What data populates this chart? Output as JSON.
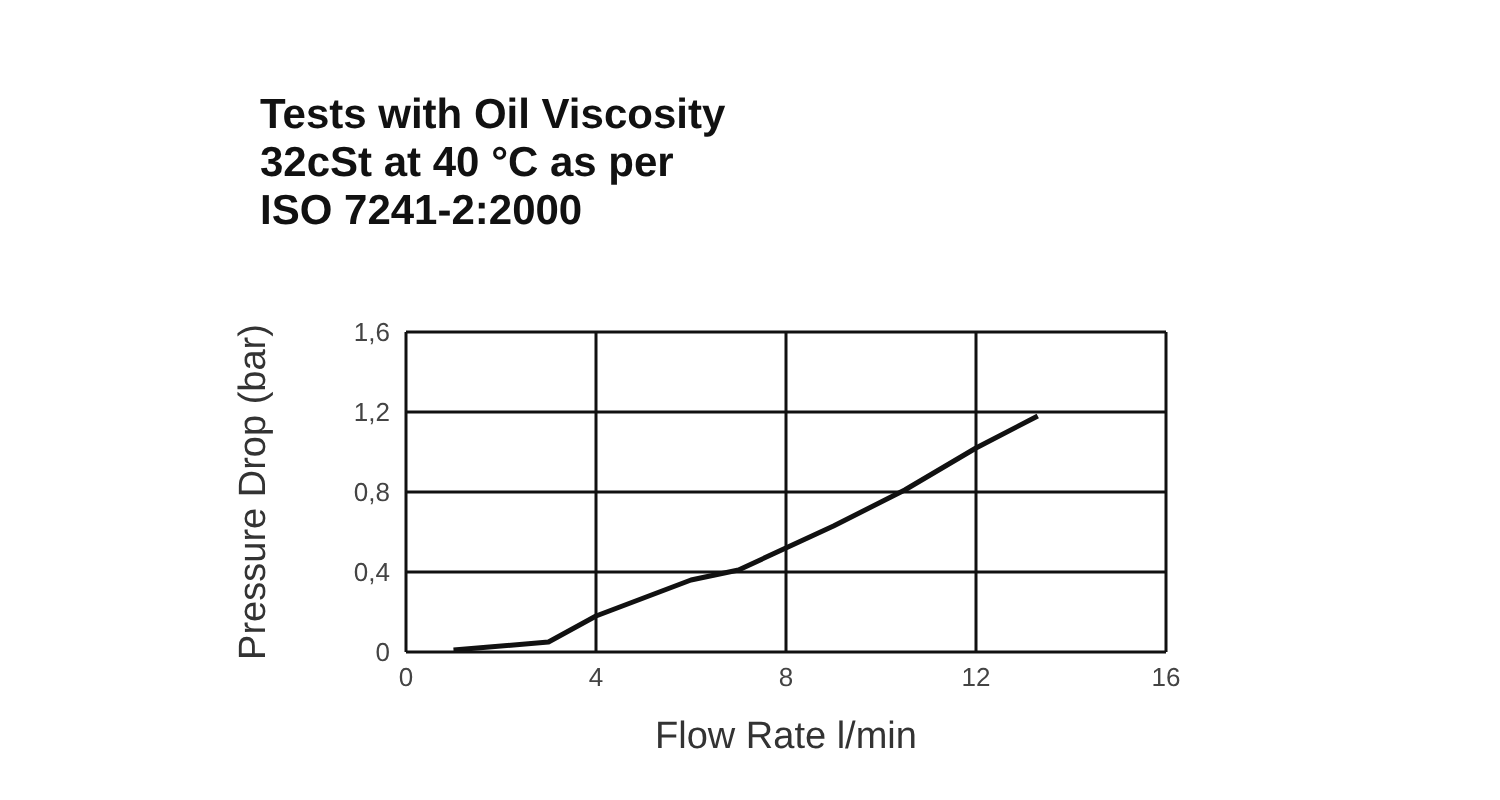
{
  "chart_data": {
    "type": "line",
    "title": "Tests with Oil Viscosity\n32cSt at 40 °C as per\nISO 7241-2:2000",
    "xlabel": "Flow Rate l/min",
    "ylabel": "Pressure Drop (bar)",
    "x": [
      1,
      3,
      4,
      6,
      7,
      9,
      10.5,
      12,
      13.3
    ],
    "series": [
      {
        "color": "#111111",
        "values": [
          0.01,
          0.05,
          0.18,
          0.36,
          0.41,
          0.63,
          0.81,
          1.02,
          1.18
        ]
      }
    ],
    "xlim": [
      0,
      16
    ],
    "xticks": [
      0,
      4,
      8,
      12,
      16
    ],
    "ylim": [
      0,
      1.6
    ],
    "yticks": [
      0,
      {
        "value": 0.4,
        "label": "0,4"
      },
      {
        "value": 0.8,
        "label": "0,8"
      },
      {
        "value": 1.2,
        "label": "1,2"
      },
      {
        "value": 1.6,
        "label": "1,6"
      }
    ],
    "grid": true,
    "marker": "none",
    "line_style": "solid"
  }
}
